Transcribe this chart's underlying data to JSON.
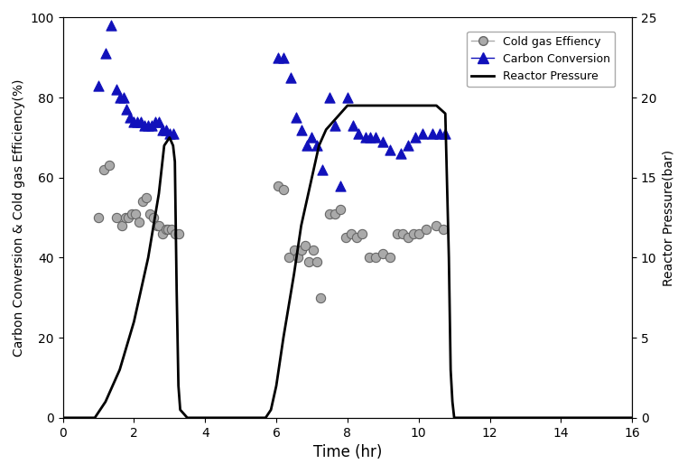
{
  "cold_gas_x": [
    1.0,
    1.15,
    1.3,
    1.5,
    1.65,
    1.75,
    1.85,
    1.95,
    2.05,
    2.15,
    2.25,
    2.35,
    2.45,
    2.55,
    2.65,
    2.7,
    2.8,
    2.9,
    2.95,
    3.05,
    3.15,
    3.25,
    6.05,
    6.2,
    6.35,
    6.5,
    6.6,
    6.7,
    6.8,
    6.9,
    7.05,
    7.15,
    7.25,
    7.5,
    7.65,
    7.8,
    7.95,
    8.1,
    8.25,
    8.4,
    8.6,
    8.8,
    9.0,
    9.2,
    9.4,
    9.55,
    9.7,
    9.85,
    10.0,
    10.2,
    10.5,
    10.7
  ],
  "cold_gas_y": [
    50,
    62,
    63,
    50,
    48,
    50,
    50,
    51,
    51,
    49,
    54,
    55,
    51,
    50,
    48,
    48,
    46,
    47,
    47,
    47,
    46,
    46,
    58,
    57,
    40,
    42,
    40,
    42,
    43,
    39,
    42,
    39,
    30,
    51,
    51,
    52,
    45,
    46,
    45,
    46,
    40,
    40,
    41,
    40,
    46,
    46,
    45,
    46,
    46,
    47,
    48,
    47
  ],
  "carbon_conv_x": [
    1.0,
    1.2,
    1.35,
    1.5,
    1.6,
    1.7,
    1.8,
    1.9,
    2.0,
    2.1,
    2.2,
    2.3,
    2.4,
    2.5,
    2.6,
    2.7,
    2.8,
    2.9,
    3.0,
    3.1,
    6.05,
    6.2,
    6.4,
    6.55,
    6.7,
    6.85,
    7.0,
    7.15,
    7.3,
    7.5,
    7.65,
    7.8,
    8.0,
    8.15,
    8.3,
    8.5,
    8.65,
    8.8,
    9.0,
    9.2,
    9.5,
    9.7,
    9.9,
    10.1,
    10.4,
    10.6,
    10.75
  ],
  "carbon_conv_y": [
    83,
    91,
    98,
    82,
    80,
    80,
    77,
    75,
    74,
    74,
    74,
    73,
    73,
    73,
    74,
    74,
    72,
    72,
    71,
    71,
    90,
    90,
    85,
    75,
    72,
    68,
    70,
    68,
    62,
    80,
    73,
    58,
    80,
    73,
    71,
    70,
    70,
    70,
    69,
    67,
    66,
    68,
    70,
    71,
    71,
    71,
    71
  ],
  "pressure_x": [
    0.0,
    0.9,
    1.2,
    1.6,
    2.0,
    2.4,
    2.7,
    2.85,
    3.0,
    3.1,
    3.15,
    3.2,
    3.25,
    3.3,
    3.5,
    4.0,
    5.0,
    5.5,
    5.7,
    5.85,
    6.0,
    6.2,
    6.5,
    6.7,
    7.0,
    7.2,
    7.4,
    7.6,
    7.8,
    8.0,
    8.5,
    9.0,
    9.5,
    10.0,
    10.5,
    10.75,
    10.85,
    10.9,
    10.95,
    11.0,
    11.5,
    16.0
  ],
  "pressure_y": [
    0,
    0,
    1,
    3,
    6,
    10,
    14,
    17,
    17.5,
    17,
    16,
    8,
    2,
    0.5,
    0,
    0,
    0,
    0,
    0,
    0.5,
    2,
    5,
    9,
    12,
    15,
    17,
    18,
    18.5,
    19,
    19.5,
    19.5,
    19.5,
    19.5,
    19.5,
    19.5,
    19,
    10,
    3,
    1,
    0,
    0,
    0
  ],
  "xlabel": "Time (hr)",
  "ylabel_left": "Carbon Conversion & Cold gas Efficiency(%)",
  "ylabel_right": "Reactor Pressure(bar)",
  "xlim": [
    0,
    16
  ],
  "ylim_left": [
    0,
    100
  ],
  "ylim_right": [
    0,
    25
  ],
  "xticks": [
    0,
    2,
    4,
    6,
    8,
    10,
    12,
    14,
    16
  ],
  "yticks_left": [
    0,
    20,
    40,
    60,
    80,
    100
  ],
  "yticks_right": [
    0,
    5,
    10,
    15,
    20,
    25
  ],
  "legend_labels": [
    "Cold gas Effiency",
    "Carbon Conversion",
    "Reactor Pressure"
  ],
  "cold_gas_color": "#aaaaaa",
  "cold_gas_edge_color": "#666666",
  "carbon_conv_color": "#1111bb",
  "pressure_color": "#000000",
  "bg_color": "#ffffff"
}
